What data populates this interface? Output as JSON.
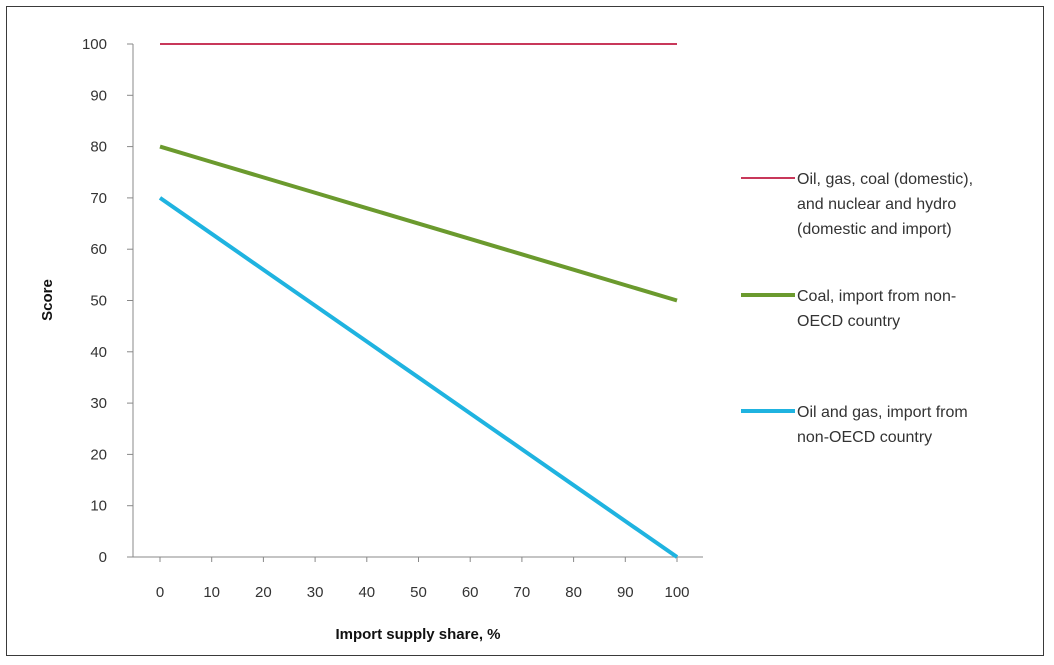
{
  "chart_data": {
    "type": "line",
    "title": "",
    "xlabel": "Import supply share, %",
    "ylabel": "Score",
    "x": [
      0,
      10,
      20,
      30,
      40,
      50,
      60,
      70,
      80,
      90,
      100
    ],
    "xlim": [
      0,
      100
    ],
    "ylim": [
      0,
      100
    ],
    "yticks": [
      0,
      10,
      20,
      30,
      40,
      50,
      60,
      70,
      80,
      90,
      100
    ],
    "grid": false,
    "legend_position": "right",
    "series": [
      {
        "name": "Oil, gas, coal (domestic), and nuclear and hydro (domestic and import)",
        "legend_lines": [
          "Oil, gas, coal (domestic),",
          "and nuclear and hydro",
          "(domestic and import)"
        ],
        "color": "#c8385a",
        "values": [
          100,
          100,
          100,
          100,
          100,
          100,
          100,
          100,
          100,
          100,
          100
        ]
      },
      {
        "name": "Coal, import from non-OECD country",
        "legend_lines": [
          "Coal, import from non-",
          "OECD country"
        ],
        "color": "#6b9a2e",
        "values": [
          80,
          77,
          74,
          71,
          68,
          65,
          62,
          59,
          56,
          53,
          50
        ]
      },
      {
        "name": "Oil and gas, import from non-OECD country",
        "legend_lines": [
          "Oil and gas, import from",
          "non-OECD country"
        ],
        "color": "#1fb3e0",
        "values": [
          70,
          63,
          56,
          49,
          42,
          35,
          28,
          21,
          14,
          7,
          0
        ]
      }
    ]
  }
}
